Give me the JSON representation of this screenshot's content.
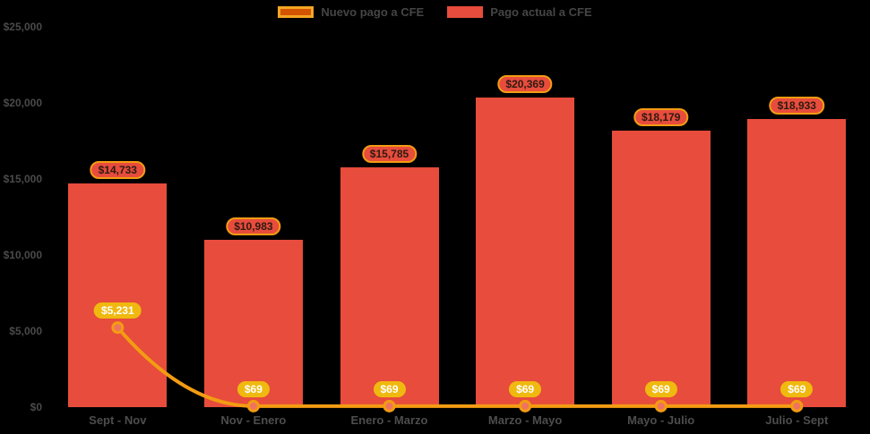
{
  "chart_data": {
    "type": "bar",
    "title": "",
    "categories": [
      "Sept - Nov",
      "Nov - Enero",
      "Enero - Marzo",
      "Marzo - Mayo",
      "Mayo - Julio",
      "Julio - Sept"
    ],
    "series": [
      {
        "name": "Nuevo pago a CFE",
        "type": "line",
        "values": [
          5231,
          69,
          69,
          69,
          69,
          69
        ],
        "labels": [
          "$5,231",
          "$69",
          "$69",
          "$69",
          "$69",
          "$69"
        ]
      },
      {
        "name": "Pago actual a CFE",
        "type": "bar",
        "values": [
          14733,
          10983,
          15785,
          20369,
          18179,
          18933
        ],
        "labels": [
          "$14,733",
          "$10,983",
          "$15,785",
          "$20,369",
          "$18,179",
          "$18,933"
        ]
      }
    ],
    "y_axis": {
      "ticks": [
        "$0",
        "$5,000",
        "$10,000",
        "$15,000",
        "$20,000",
        "$25,000"
      ],
      "tick_values": [
        0,
        5000,
        10000,
        15000,
        20000,
        25000
      ],
      "ylim": [
        0,
        25000
      ]
    },
    "xlabel": "",
    "ylabel": "",
    "legend_position": "top",
    "grid": false
  },
  "colors": {
    "background": "#000000",
    "bar_fill": "#e74c3c",
    "line_stroke": "#f39c12",
    "point_fill": "#f0735f",
    "point_stroke": "#f39c12",
    "line_pill_bg": "#f0b90f",
    "line_pill_text": "#ffffff",
    "bar_pill_bg": "#e74c3c",
    "bar_pill_border": "#f39c12",
    "bar_pill_text": "#2e1a12",
    "legend_line_border": "#f5a623",
    "legend_line_fill": "#d35400",
    "axis_text": "#4a4a4a"
  }
}
